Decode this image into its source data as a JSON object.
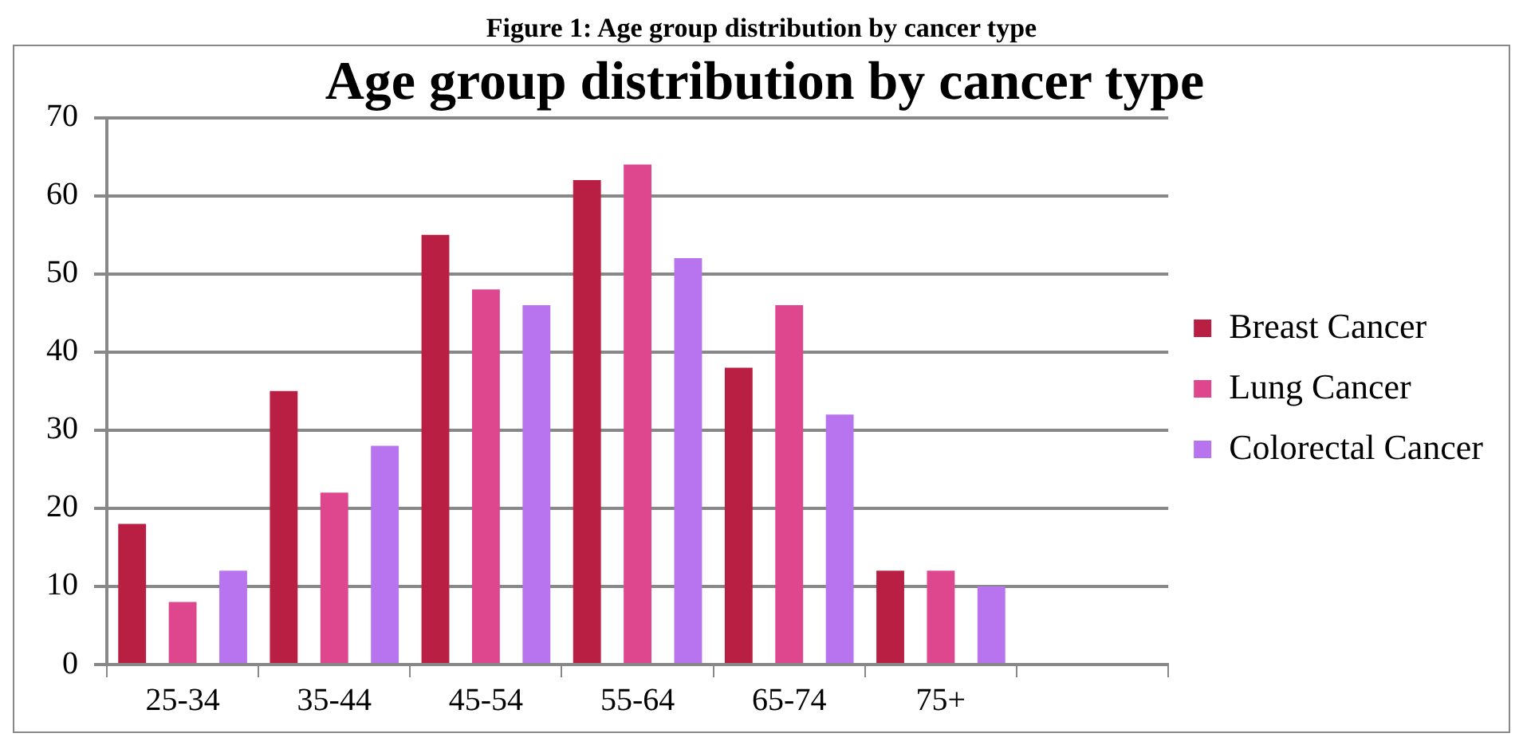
{
  "chart_data": {
    "type": "bar",
    "title": "Age group distribution by cancer type",
    "annotations": [
      "Figure 1: Age group distribution by cancer type"
    ],
    "categories": [
      "25-34",
      "35-44",
      "45-54",
      "55-64",
      "65-74",
      "75+",
      null
    ],
    "series": [
      {
        "name": "Breast Cancer",
        "color": "#b91f43",
        "values": [
          18,
          35,
          55,
          62,
          38,
          12,
          null
        ]
      },
      {
        "name": "Lung Cancer",
        "color": "#de478e",
        "values": [
          8,
          22,
          48,
          64,
          46,
          12,
          null
        ]
      },
      {
        "name": "Colorectal Cancer",
        "color": "#b873ee",
        "values": [
          12,
          28,
          46,
          52,
          32,
          10,
          null
        ]
      }
    ],
    "ylim": [
      0,
      70
    ],
    "yticks": [
      0,
      10,
      20,
      30,
      40,
      50,
      60,
      70
    ],
    "grid": "y",
    "legend": "right"
  }
}
